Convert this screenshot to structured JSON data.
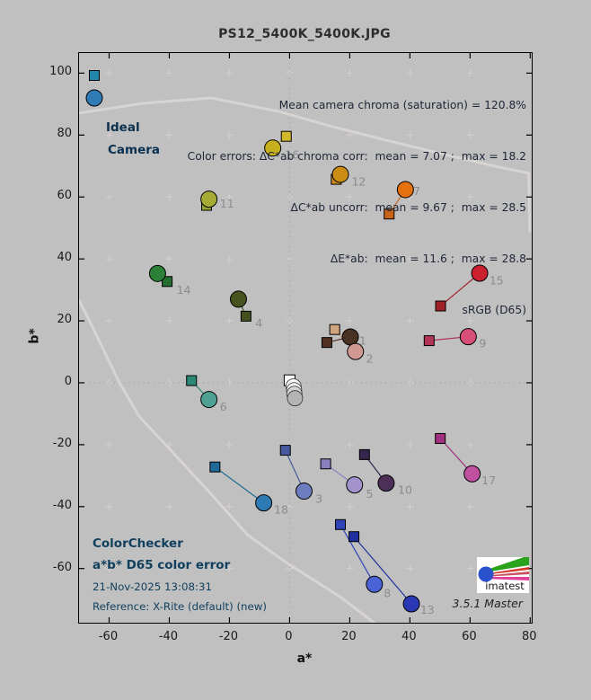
{
  "window": {
    "bg": "#c0c0c0"
  },
  "header": {
    "title": "PS12_5400K_5400K.JPG"
  },
  "legend": {
    "ideal_label": "Ideal",
    "camera_label": "Camera",
    "ideal_color": "#2187ad",
    "camera_color": "#2e7bb5"
  },
  "stats": {
    "line1": "Mean camera chroma (saturation) = 120.8%",
    "line2": "Color errors: ΔC*ab chroma corr:  mean = 7.07 ;  max = 18.2",
    "line3": "ΔC*ab uncorr:  mean = 9.67 ;  max = 28.5",
    "line4": "ΔE*ab:  mean = 11.6 ;  max = 28.8",
    "line5": "sRGB (D65)"
  },
  "footer": {
    "title": "ColorChecker",
    "subtitle": "a*b* D65 color error",
    "datetime": "21-Nov-2025 13:08:31",
    "reference": "Reference: X-Rite (default) (new)"
  },
  "branding": {
    "logo_text": "imatest",
    "version": "3.5.1  Master"
  },
  "axes": {
    "xlabel": "a*",
    "ylabel": "b*",
    "xticks": [
      -60,
      -40,
      -20,
      0,
      20,
      40,
      60,
      80
    ],
    "yticks": [
      100,
      80,
      60,
      40,
      20,
      0,
      -20,
      -40,
      -60
    ],
    "xlim": [
      -70,
      80.5
    ],
    "ylim": [
      -77.5,
      106.5
    ]
  },
  "chart_data": {
    "type": "scatter",
    "description": "ColorChecker a*b* color error: ideal (square) vs camera (circle) per patch",
    "grid_cross_a": [
      -60,
      -40,
      -20,
      0,
      20,
      40,
      60
    ],
    "grid_cross_b": [
      100,
      80,
      60,
      40,
      20,
      0,
      -20,
      -40,
      -60
    ],
    "patches": [
      {
        "id": "1",
        "ideal": [
          12.4,
          13.0
        ],
        "camera": [
          20.2,
          14.8
        ],
        "label_pos": [
          24.3,
          13.4
        ],
        "ideal_color": "#533122",
        "camera_color": "#4a3222"
      },
      {
        "id": "2",
        "ideal": [
          15.0,
          17.2
        ],
        "camera": [
          21.9,
          10.1
        ],
        "label_pos": [
          26.6,
          7.6
        ],
        "ideal_color": "#d0a47c",
        "camera_color": "#d09a92"
      },
      {
        "id": "3",
        "ideal": [
          -1.4,
          -21.8
        ],
        "camera": [
          4.8,
          -35.0
        ],
        "label_pos": [
          9.8,
          -37.8
        ],
        "ideal_color": "#46589e",
        "camera_color": "#6e7cc0"
      },
      {
        "id": "4",
        "ideal": [
          -14.5,
          21.5
        ],
        "camera": [
          -17.0,
          27.0
        ],
        "label_pos": [
          -10.2,
          19.0
        ],
        "ideal_color": "#44511f",
        "camera_color": "#47541f"
      },
      {
        "id": "5",
        "ideal": [
          12.0,
          -26.2
        ],
        "camera": [
          21.6,
          -33.0
        ],
        "label_pos": [
          26.6,
          -36.2
        ],
        "ideal_color": "#8a80c0",
        "camera_color": "#a492cc"
      },
      {
        "id": "6",
        "ideal": [
          -32.6,
          0.7
        ],
        "camera": [
          -26.8,
          -5.4
        ],
        "label_pos": [
          -22.0,
          -8.0
        ],
        "ideal_color": "#2e8878",
        "camera_color": "#4fa293"
      },
      {
        "id": "7",
        "ideal": [
          33.1,
          54.5
        ],
        "camera": [
          38.5,
          62.4
        ],
        "label_pos": [
          42.3,
          61.6
        ],
        "ideal_color": "#c8641a",
        "camera_color": "#e4700e"
      },
      {
        "id": "8",
        "ideal": [
          16.9,
          -45.8
        ],
        "camera": [
          28.2,
          -65.1
        ],
        "label_pos": [
          32.5,
          -68.2
        ],
        "ideal_color": "#3044b8",
        "camera_color": "#4a64d8"
      },
      {
        "id": "9",
        "ideal": [
          46.4,
          13.6
        ],
        "camera": [
          59.4,
          14.9
        ],
        "label_pos": [
          64.2,
          12.4
        ],
        "ideal_color": "#b23456",
        "camera_color": "#d8507a"
      },
      {
        "id": "10",
        "ideal": [
          24.9,
          -23.2
        ],
        "camera": [
          32.1,
          -32.4
        ],
        "label_pos": [
          38.4,
          -34.8
        ],
        "ideal_color": "#34244e",
        "camera_color": "#4c3058"
      },
      {
        "id": "11",
        "ideal": [
          -27.6,
          57.3
        ],
        "camera": [
          -26.8,
          59.3
        ],
        "label_pos": [
          -20.8,
          57.6
        ],
        "ideal_color": "#98a430",
        "camera_color": "#a6ab36"
      },
      {
        "id": "12",
        "ideal": [
          15.5,
          65.7
        ],
        "camera": [
          16.9,
          67.3
        ],
        "label_pos": [
          23.0,
          64.7
        ],
        "ideal_color": "#ca8c1e",
        "camera_color": "#cc8d12"
      },
      {
        "id": "13",
        "ideal": [
          21.4,
          -49.7
        ],
        "camera": [
          40.5,
          -71.4
        ],
        "label_pos": [
          45.8,
          -73.6
        ],
        "ideal_color": "#2030a0",
        "camera_color": "#2a38b4"
      },
      {
        "id": "14",
        "ideal": [
          -40.7,
          32.7
        ],
        "camera": [
          -43.9,
          35.3
        ],
        "label_pos": [
          -35.2,
          29.8
        ],
        "ideal_color": "#266e30",
        "camera_color": "#2d8038"
      },
      {
        "id": "15",
        "ideal": [
          50.2,
          24.8
        ],
        "camera": [
          63.2,
          35.4
        ],
        "label_pos": [
          68.8,
          32.8
        ],
        "ideal_color": "#a02028",
        "camera_color": "#cc1f30"
      },
      {
        "id": "16",
        "ideal": [
          -1.1,
          79.6
        ],
        "camera": [
          -5.6,
          75.8
        ],
        "label_pos": [
          0.9,
          73.4
        ],
        "ideal_color": "#d2b82a",
        "camera_color": "#c6b01e"
      },
      {
        "id": "17",
        "ideal": [
          50.1,
          -18.0
        ],
        "camera": [
          60.7,
          -29.4
        ],
        "label_pos": [
          66.2,
          -31.8
        ],
        "ideal_color": "#a03080",
        "camera_color": "#c050a0"
      },
      {
        "id": "18",
        "ideal": [
          -24.8,
          -27.2
        ],
        "camera": [
          -8.6,
          -38.8
        ],
        "label_pos": [
          -2.8,
          -41.2
        ],
        "ideal_color": "#1f6a96",
        "camera_color": "#2e7ab4"
      }
    ],
    "neutrals": {
      "ideal_square": {
        "pos": [
          0.0,
          0.8
        ],
        "color": "#ffffff"
      },
      "camera_circles": [
        {
          "pos": [
            1.3,
            -1.2
          ],
          "color": "#fafafa"
        },
        {
          "pos": [
            1.5,
            -2.4
          ],
          "color": "#ececec"
        },
        {
          "pos": [
            1.6,
            -3.6
          ],
          "color": "#d6d6d6"
        },
        {
          "pos": [
            1.8,
            -5.0
          ],
          "color": "#b4b4b4"
        }
      ]
    },
    "srgb_boundary": {
      "upper": [
        [
          -70,
          87.1
        ],
        [
          -48.4,
          90.3
        ],
        [
          -26.1,
          92.0
        ],
        [
          -3.9,
          87.7
        ],
        [
          13.9,
          82.8
        ],
        [
          31.8,
          78.4
        ],
        [
          52.5,
          73.5
        ],
        [
          70.3,
          69.5
        ],
        [
          79.5,
          67.7
        ],
        [
          79.9,
          49.0
        ]
      ],
      "lower": [
        [
          -70,
          26.6
        ],
        [
          -67.1,
          21.1
        ],
        [
          -56.4,
          -0.3
        ],
        [
          -49.9,
          -11.0
        ],
        [
          -41.5,
          -19.7
        ],
        [
          -26.7,
          -35.3
        ],
        [
          -13.9,
          -49.2
        ],
        [
          -0.9,
          -58.2
        ],
        [
          16.9,
          -69.2
        ],
        [
          28.2,
          -77.6
        ]
      ]
    }
  }
}
